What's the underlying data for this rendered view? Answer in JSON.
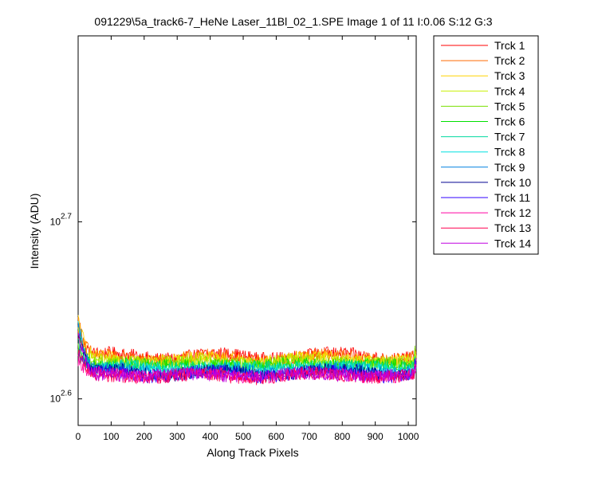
{
  "chart_data": {
    "type": "line",
    "title": "091229\\5a_track6-7_HeNe Laser_11Bl_02_1.SPE  Image 1 of 11  I:0.06  S:12  G:3",
    "xlabel": "Along Track Pixels",
    "ylabel": "Intensity (ADU)",
    "xlim": [
      0,
      1024
    ],
    "ylim_log10": [
      2.585,
      2.805
    ],
    "y_scale": "log",
    "x_ticks": [
      "0",
      "100",
      "200",
      "300",
      "400",
      "500",
      "600",
      "700",
      "800",
      "900",
      "1000"
    ],
    "y_ticks": [
      {
        "base": "10",
        "exp": "2.6",
        "log10": 2.6
      },
      {
        "base": "10",
        "exp": "2.7",
        "log10": 2.7
      }
    ],
    "grid": false,
    "legend_position": "outside-right",
    "series": [
      {
        "name": "Trck 1",
        "color": "#ff0000",
        "level": 2.625
      },
      {
        "name": "Trck 2",
        "color": "#ff6a00",
        "level": 2.624
      },
      {
        "name": "Trck 3",
        "color": "#ffd200",
        "level": 2.6232
      },
      {
        "name": "Trck 4",
        "color": "#c8f000",
        "level": 2.6222
      },
      {
        "name": "Trck 5",
        "color": "#7ae000",
        "level": 2.6212
      },
      {
        "name": "Trck 6",
        "color": "#00e000",
        "level": 2.62
      },
      {
        "name": "Trck 7",
        "color": "#00d9a0",
        "level": 2.6188
      },
      {
        "name": "Trck 8",
        "color": "#00e0e0",
        "level": 2.6176
      },
      {
        "name": "Trck 9",
        "color": "#0080e0",
        "level": 2.6166
      },
      {
        "name": "Trck 10",
        "color": "#000090",
        "level": 2.6158
      },
      {
        "name": "Trck 11",
        "color": "#3000ff",
        "level": 2.615
      },
      {
        "name": "Trck 12",
        "color": "#ff00a0",
        "level": 2.6142
      },
      {
        "name": "Trck 13",
        "color": "#ff0050",
        "level": 2.6138
      },
      {
        "name": "Trck 14",
        "color": "#c000e0",
        "level": 2.6144
      }
    ],
    "profile_note_shape": {
      "start_spike_log10": 2.645,
      "x_at_plateau": 60,
      "dip_centers": [
        260,
        560,
        950
      ]
    }
  }
}
